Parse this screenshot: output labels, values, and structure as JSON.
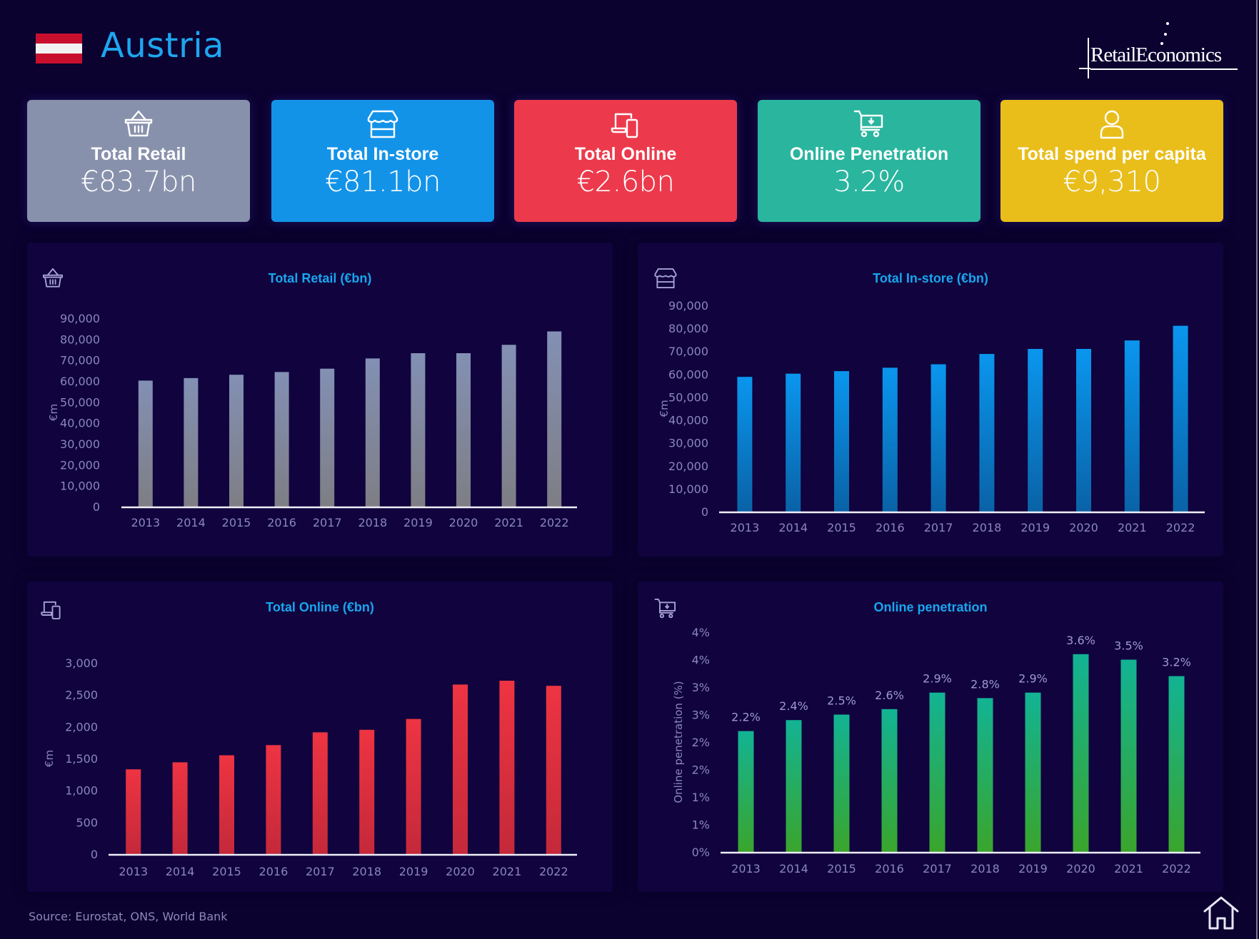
{
  "header": {
    "country": "Austria",
    "flag_colors": [
      "#c8102e",
      "#f2f2f2",
      "#c8102e"
    ],
    "logo_text": "RetailEconomics"
  },
  "kpis": [
    {
      "icon": "basket-icon",
      "label": "Total Retail",
      "value": "€83.7bn",
      "color": "#8891ac"
    },
    {
      "icon": "storefront-icon",
      "label": "Total In-store",
      "value": "€81.1bn",
      "color": "#1393e8"
    },
    {
      "icon": "devices-icon",
      "label": "Total Online",
      "value": "€2.6bn",
      "color": "#ec3a4c"
    },
    {
      "icon": "cart-download-icon",
      "label": "Online Penetration",
      "value": "3.2%",
      "color": "#2ab59e"
    },
    {
      "icon": "user-icon",
      "label": "Total spend per capita",
      "value": "€9,310",
      "color": "#e9be1b"
    }
  ],
  "chart_data": [
    {
      "type": "bar",
      "title": "Total Retail (€bn)",
      "icon": "basket-icon",
      "xlabel": "",
      "ylabel": "€m",
      "categories": [
        "2013",
        "2014",
        "2015",
        "2016",
        "2017",
        "2018",
        "2019",
        "2020",
        "2021",
        "2022"
      ],
      "values": [
        60200,
        61400,
        63000,
        64300,
        65900,
        70800,
        73300,
        73300,
        77300,
        83700
      ],
      "ylim": [
        0,
        90000
      ],
      "yticks": [
        0,
        10000,
        20000,
        30000,
        40000,
        50000,
        60000,
        70000,
        80000,
        90000
      ],
      "ytick_labels": [
        "0",
        "10,000",
        "20,000",
        "30,000",
        "40,000",
        "50,000",
        "60,000",
        "70,000",
        "80,000",
        "90,000"
      ],
      "grid": false,
      "colors": [
        "#8390b4",
        "#7e7e84"
      ]
    },
    {
      "type": "bar",
      "title": "Total In-store (€bn)",
      "icon": "storefront-icon",
      "xlabel": "",
      "ylabel": "€m",
      "categories": [
        "2013",
        "2014",
        "2015",
        "2016",
        "2017",
        "2018",
        "2019",
        "2020",
        "2021",
        "2022"
      ],
      "values": [
        58800,
        60200,
        61300,
        62800,
        64300,
        68800,
        71000,
        71000,
        74700,
        81100
      ],
      "ylim": [
        0,
        90000
      ],
      "yticks": [
        0,
        10000,
        20000,
        30000,
        40000,
        50000,
        60000,
        70000,
        80000,
        90000
      ],
      "ytick_labels": [
        "0",
        "10,000",
        "20,000",
        "30,000",
        "40,000",
        "50,000",
        "60,000",
        "70,000",
        "80,000",
        "90,000"
      ],
      "grid": false,
      "colors": [
        "#0a96ee",
        "#0a62a6"
      ]
    },
    {
      "type": "bar",
      "title": "Total Online (€bn)",
      "icon": "devices-icon",
      "xlabel": "",
      "ylabel": "€m",
      "categories": [
        "2013",
        "2014",
        "2015",
        "2016",
        "2017",
        "2018",
        "2019",
        "2020",
        "2021",
        "2022"
      ],
      "values": [
        1330,
        1440,
        1550,
        1710,
        1910,
        1950,
        2120,
        2660,
        2720,
        2640
      ],
      "ylim": [
        0,
        3000
      ],
      "yticks": [
        0,
        500,
        1000,
        1500,
        2000,
        2500,
        3000
      ],
      "ytick_labels": [
        "0",
        "500",
        "1,000",
        "1,500",
        "2,000",
        "2,500",
        "3,000"
      ],
      "grid": false,
      "colors": [
        "#ee3442",
        "#c4293a"
      ]
    },
    {
      "type": "bar",
      "title": "Online penetration",
      "icon": "cart-download-icon",
      "xlabel": "",
      "ylabel": "Online penetration (%)",
      "categories": [
        "2013",
        "2014",
        "2015",
        "2016",
        "2017",
        "2018",
        "2019",
        "2020",
        "2021",
        "2022"
      ],
      "values": [
        2.2,
        2.4,
        2.5,
        2.6,
        2.9,
        2.8,
        2.9,
        3.6,
        3.5,
        3.2
      ],
      "data_labels": [
        "2.2%",
        "2.4%",
        "2.5%",
        "2.6%",
        "2.9%",
        "2.8%",
        "2.9%",
        "3.6%",
        "3.5%",
        "3.2%"
      ],
      "ylim": [
        0,
        4.0
      ],
      "yticks": [
        0,
        0.5,
        1.0,
        1.5,
        2.0,
        2.5,
        3.0,
        3.5,
        4.0
      ],
      "ytick_labels": [
        "0%",
        "1%",
        "1%",
        "2%",
        "2%",
        "3%",
        "3%",
        "4%",
        "4%"
      ],
      "grid": false,
      "colors": [
        "#12b394",
        "#3aa52c"
      ]
    }
  ],
  "footer": {
    "source": "Source: Eurostat, ONS, World Bank",
    "home_icon": "home-icon"
  }
}
